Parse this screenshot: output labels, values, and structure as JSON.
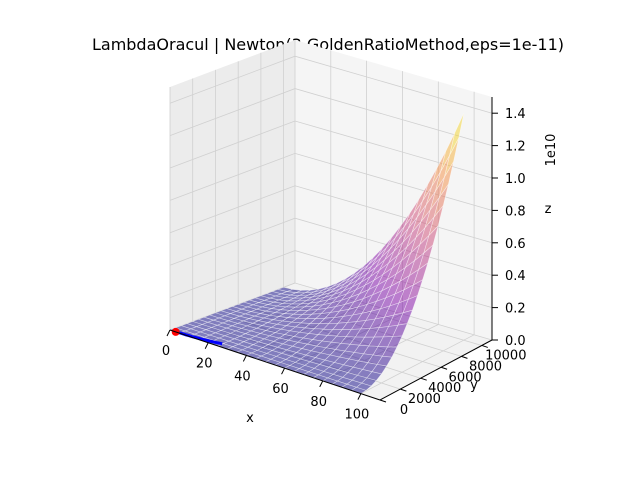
{
  "chart_data": {
    "type": "surface3d",
    "title": "LambdaOracul | Newton(3,GoldenRatioMethod,eps=1e-11)",
    "xlabel": "x",
    "ylabel": "y",
    "zlabel": "z",
    "z_scale_label": "1e10",
    "xlim": [
      0,
      110
    ],
    "ylim": [
      0,
      11000
    ],
    "zlim": [
      0,
      1.5
    ],
    "x_ticks": [
      0,
      20,
      40,
      60,
      80,
      100
    ],
    "y_ticks": [
      0,
      2000,
      4000,
      6000,
      8000,
      10000
    ],
    "z_ticks": [
      "0.0",
      "0.2",
      "0.4",
      "0.6",
      "0.8",
      "1.0",
      "1.2",
      "1.4"
    ],
    "x_tick_labels": [
      "0",
      "20",
      "40",
      "60",
      "80",
      "100"
    ],
    "y_tick_labels": [
      "0",
      "2000",
      "4000",
      "6000",
      "8000",
      "10000"
    ],
    "z_tick_labels": [
      "0.0",
      "0.2",
      "0.4",
      "0.6",
      "0.8",
      "1.0",
      "1.2",
      "1.4"
    ],
    "colormap": [
      "#0d0887",
      "#7e03a8",
      "#cc4778",
      "#f89540",
      "#f0f921"
    ],
    "surface_alpha": 0.5,
    "grid": true,
    "path_color": "#0000ff",
    "point_color": "#ff0000"
  }
}
